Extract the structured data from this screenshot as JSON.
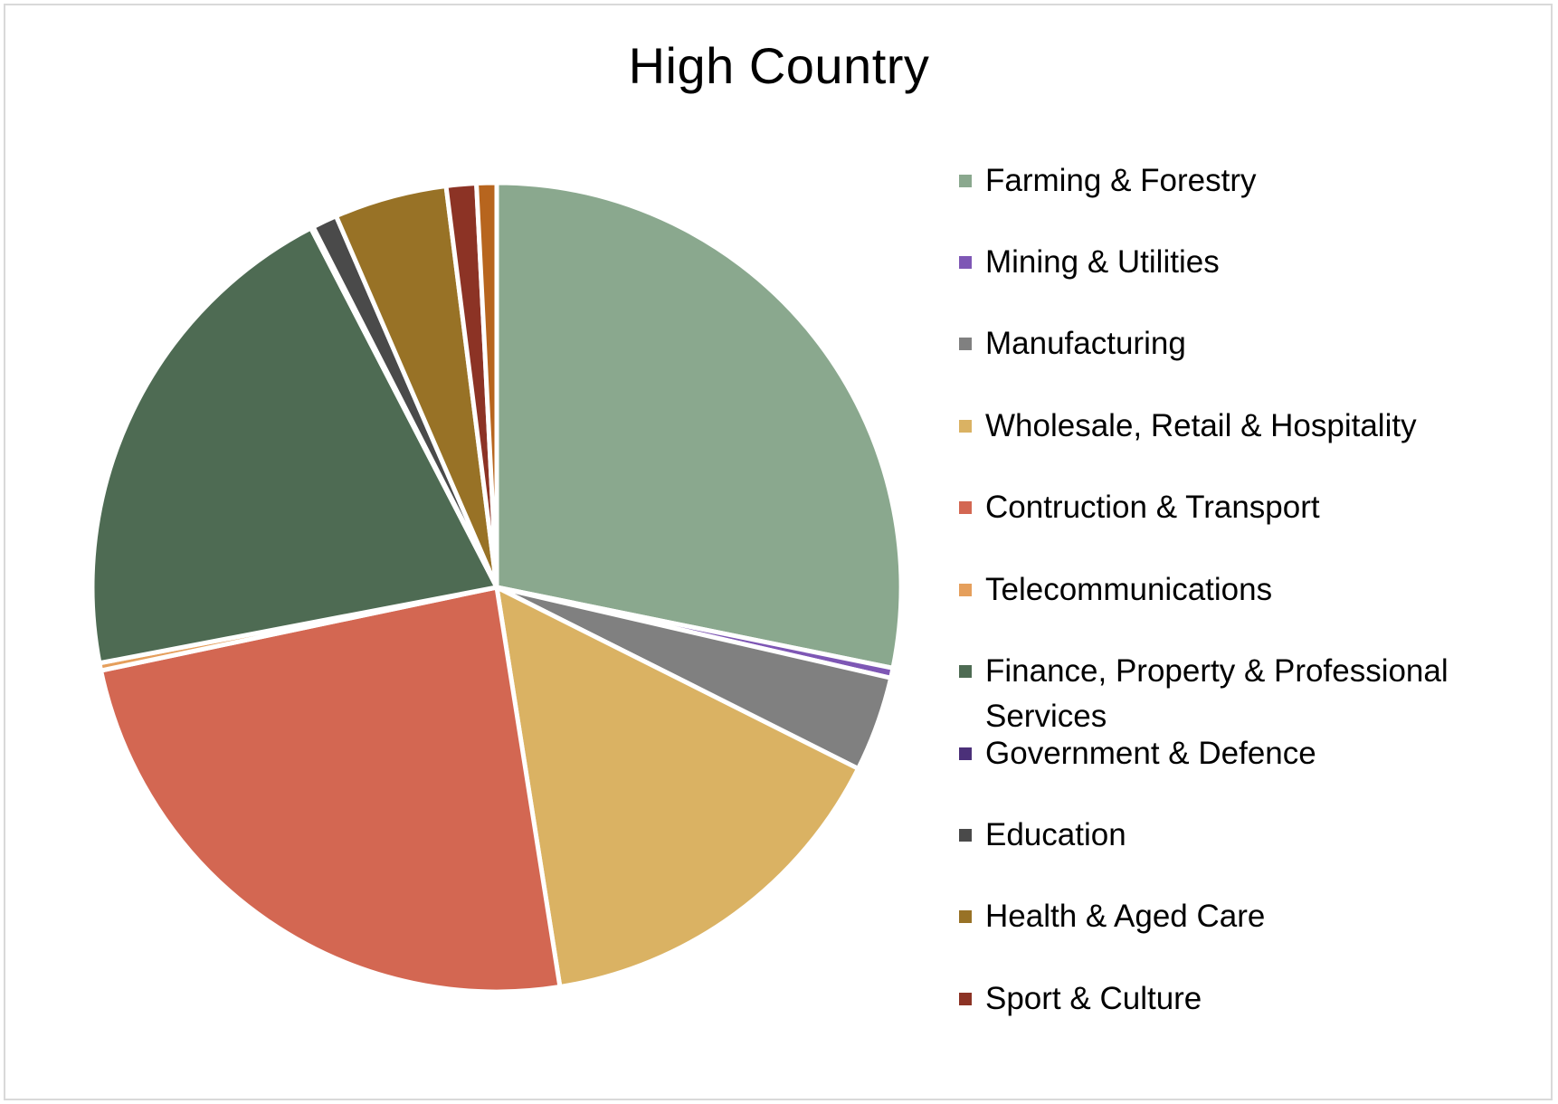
{
  "chart_data": {
    "type": "pie",
    "title": "High Country",
    "legend_position": "right",
    "slices": [
      {
        "label": "Farming & Forestry",
        "value": 28.2,
        "color": "#8aa88e"
      },
      {
        "label": "Mining & Utilities",
        "value": 0.4,
        "color": "#7e57b5"
      },
      {
        "label": "Manufacturing",
        "value": 3.8,
        "color": "#808080"
      },
      {
        "label": "Wholesale, Retail & Hospitality",
        "value": 15.1,
        "color": "#dab263"
      },
      {
        "label": "Contruction & Transport",
        "value": 24.2,
        "color": "#d36752"
      },
      {
        "label": "Telecommunications",
        "value": 0.3,
        "color": "#e59f5c"
      },
      {
        "label": "Finance, Property & Professional Services",
        "value": 20.4,
        "color": "#4e6b53"
      },
      {
        "label": "Government & Defence",
        "value": 0.1,
        "color": "#4b3079"
      },
      {
        "label": "Education",
        "value": 1.0,
        "color": "#4a4a4a"
      },
      {
        "label": "Health & Aged Care",
        "value": 4.5,
        "color": "#987226"
      },
      {
        "label": "Sport & Culture",
        "value": 1.2,
        "color": "#8c3325"
      },
      {
        "label": "",
        "value": 0.8,
        "color": "#b7651e"
      }
    ]
  }
}
